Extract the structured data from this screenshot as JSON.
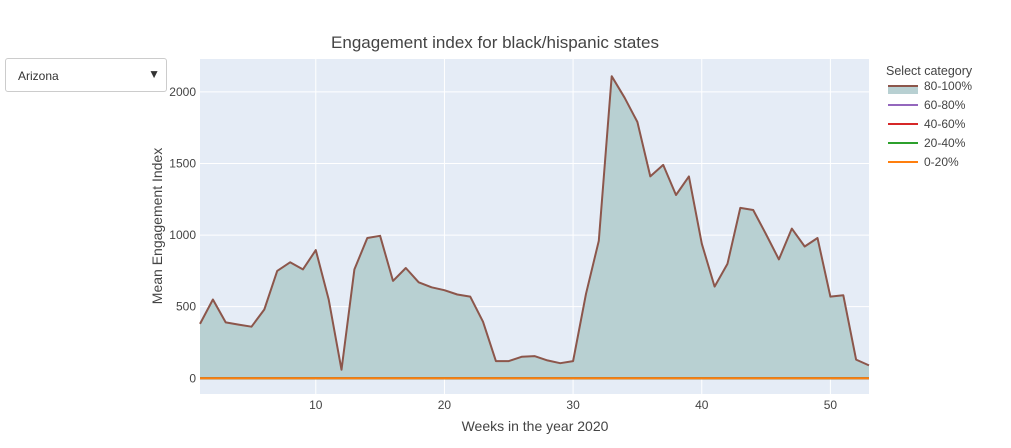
{
  "dropdown": {
    "selected": "Arizona"
  },
  "icons": {
    "dropdown_arrow": "caret-down-icon"
  },
  "chart_data": {
    "type": "area",
    "title": "Engagement index for black/hispanic states",
    "xlabel": "Weeks in the year 2020",
    "ylabel": "Mean Engagement Index",
    "xlim": [
      1,
      53
    ],
    "ylim": [
      -110,
      2230
    ],
    "xticks": [
      10,
      20,
      30,
      40,
      50
    ],
    "yticks": [
      0,
      500,
      1000,
      1500,
      2000
    ],
    "grid": true,
    "legend_placement": "right",
    "legend_title": "Select category",
    "background_color": "#e5ecf6",
    "series": [
      {
        "name": "80-100%",
        "color": "#8c564b",
        "fill": "#b8d0d2",
        "x": [
          1,
          2,
          3,
          4,
          5,
          6,
          7,
          8,
          9,
          10,
          11,
          12,
          13,
          14,
          15,
          16,
          17,
          18,
          19,
          20,
          21,
          22,
          23,
          24,
          25,
          26,
          27,
          28,
          29,
          30,
          31,
          32,
          33,
          34,
          35,
          36,
          37,
          38,
          39,
          40,
          41,
          42,
          43,
          44,
          45,
          46,
          47,
          48,
          49,
          50,
          51,
          52,
          53
        ],
        "y": [
          380,
          550,
          390,
          375,
          360,
          480,
          750,
          810,
          760,
          895,
          550,
          60,
          760,
          980,
          995,
          680,
          770,
          670,
          635,
          615,
          585,
          570,
          395,
          120,
          120,
          150,
          155,
          125,
          105,
          120,
          590,
          960,
          2110,
          1960,
          1790,
          1410,
          1490,
          1280,
          1410,
          940,
          640,
          800,
          1190,
          1175,
          1005,
          830,
          1045,
          920,
          980,
          570,
          580,
          130,
          90
        ]
      },
      {
        "name": "60-80%",
        "color": "#9467bd",
        "x": [
          1,
          53
        ],
        "y": [
          0,
          0
        ]
      },
      {
        "name": "40-60%",
        "color": "#d62728",
        "x": [
          1,
          53
        ],
        "y": [
          0,
          0
        ]
      },
      {
        "name": "20-40%",
        "color": "#2ca02c",
        "x": [
          1,
          53
        ],
        "y": [
          0,
          0
        ]
      },
      {
        "name": "0-20%",
        "color": "#ff7f0e",
        "x": [
          1,
          53
        ],
        "y": [
          0,
          0
        ]
      }
    ]
  }
}
